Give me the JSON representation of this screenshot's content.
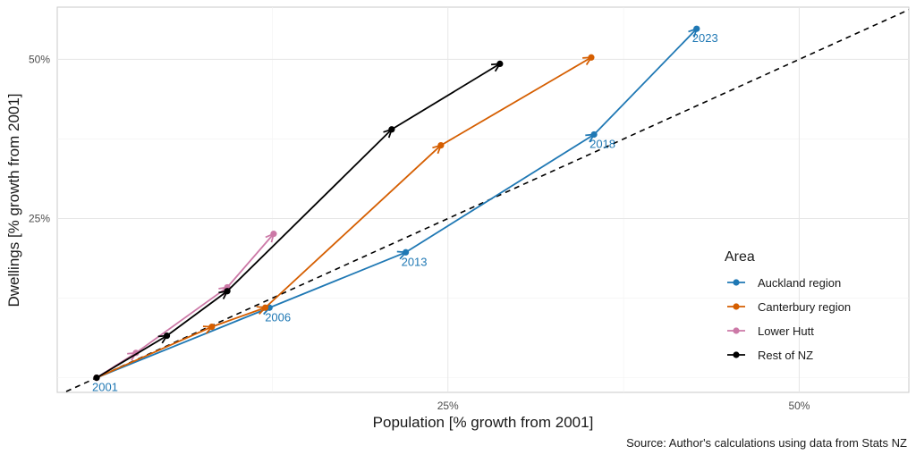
{
  "chart_data": {
    "type": "line",
    "title": "",
    "xlabel": "Population [% growth from 2001]",
    "ylabel": "Dwellings [% growth from 2001]",
    "caption": "Source: Author's calculations using data from Stats NZ",
    "xlim": [
      -2.8,
      57.8
    ],
    "ylim": [
      -2.3,
      58.2
    ],
    "x_ticks": [
      {
        "value": 25,
        "label": "25%"
      },
      {
        "value": 50,
        "label": "50%"
      }
    ],
    "y_ticks": [
      {
        "value": 25,
        "label": "25%"
      },
      {
        "value": 50,
        "label": "50%"
      }
    ],
    "reference_line": {
      "style": "dashed",
      "slope": 1,
      "intercept": 0
    },
    "grid": true,
    "legend": {
      "title": "Area",
      "position": "right"
    },
    "series": [
      {
        "name": "Auckland region",
        "color": "#1f78b4",
        "points": [
          {
            "x": 0,
            "y": 0,
            "label": "2001"
          },
          {
            "x": 12.3,
            "y": 11.0,
            "label": "2006"
          },
          {
            "x": 22.0,
            "y": 19.7,
            "label": "2013"
          },
          {
            "x": 35.4,
            "y": 38.2,
            "label": "2018"
          },
          {
            "x": 42.7,
            "y": 54.8,
            "label": "2023"
          }
        ]
      },
      {
        "name": "Canterbury region",
        "color": "#d55e00",
        "points": [
          {
            "x": 0,
            "y": 0
          },
          {
            "x": 8.2,
            "y": 8.0
          },
          {
            "x": 12.0,
            "y": 11.0
          },
          {
            "x": 24.5,
            "y": 36.5
          },
          {
            "x": 35.2,
            "y": 50.3
          }
        ]
      },
      {
        "name": "Lower Hutt",
        "color": "#cc79a7",
        "points": [
          {
            "x": 0,
            "y": 0
          },
          {
            "x": 2.8,
            "y": 3.9
          },
          {
            "x": 9.3,
            "y": 14.2
          },
          {
            "x": 12.6,
            "y": 22.6
          }
        ]
      },
      {
        "name": "Rest of NZ",
        "color": "#000000",
        "points": [
          {
            "x": 0,
            "y": 0
          },
          {
            "x": 5.0,
            "y": 6.6
          },
          {
            "x": 9.3,
            "y": 13.6
          },
          {
            "x": 21.0,
            "y": 39.0
          },
          {
            "x": 28.7,
            "y": 49.3
          }
        ]
      }
    ]
  }
}
